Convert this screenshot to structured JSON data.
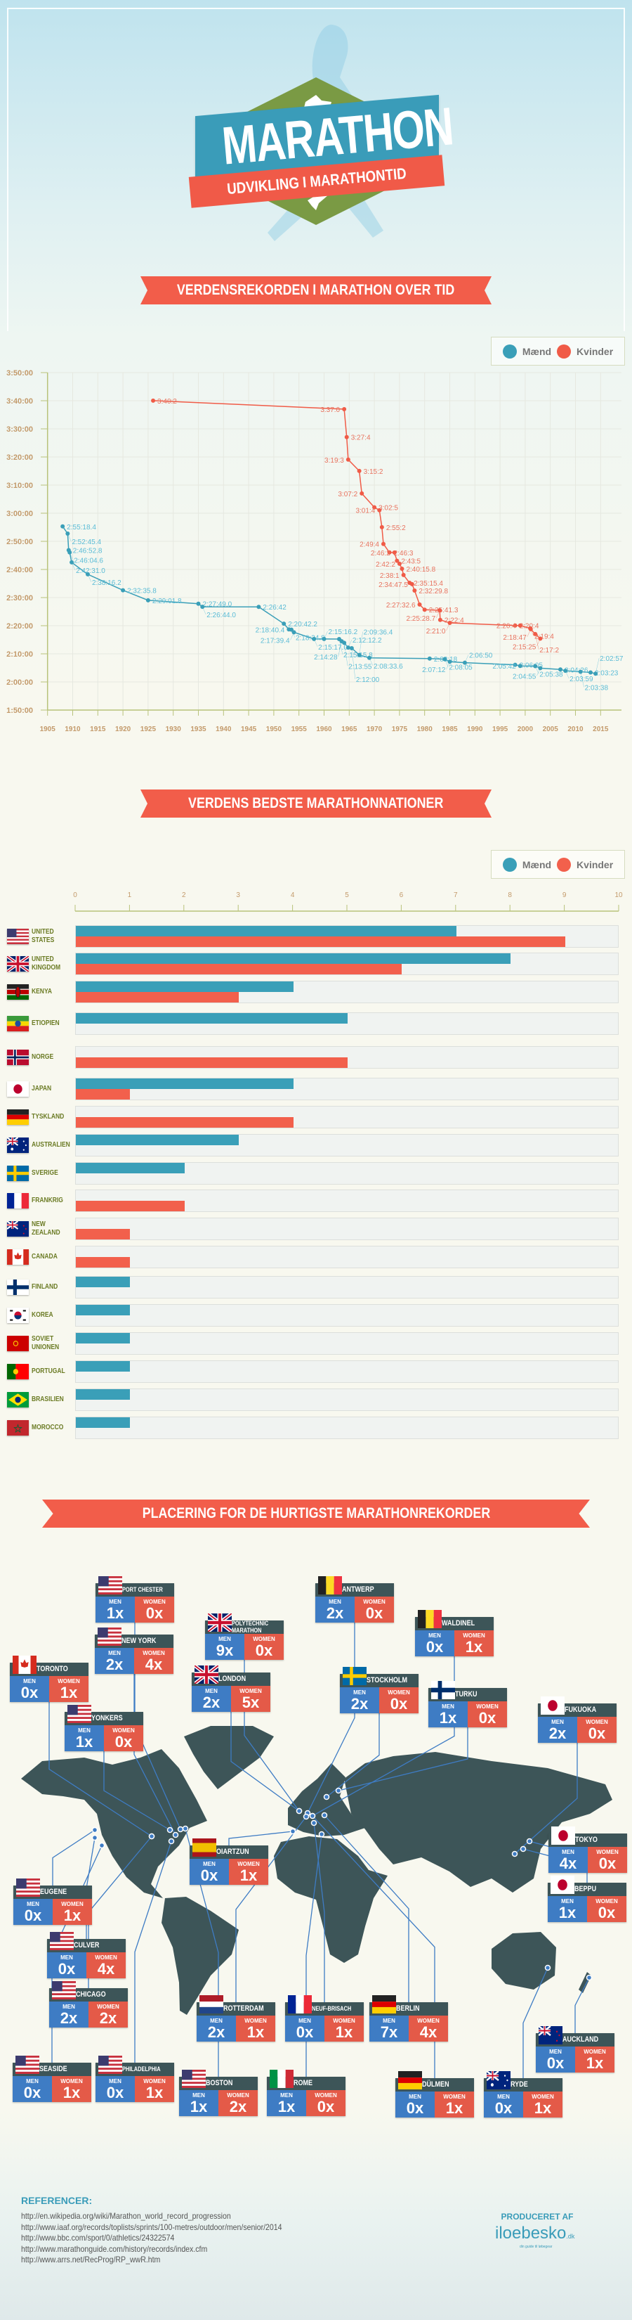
{
  "header": {
    "title": "MARATHON",
    "subtitle": "UDVIKLING I MARATHONTID"
  },
  "sections": {
    "records": "VERDENSREKORDEN I MARATHON OVER TID",
    "nations": "VERDENS BEDSTE MARATHONNATIONER",
    "locations": "PLACERING FOR DE HURTIGSTE MARATHONREKORDER"
  },
  "legend": {
    "men": "Mænd",
    "women": "Kvinder"
  },
  "colors": {
    "men": "#3a9fb8",
    "women": "#f05b47",
    "map": "#3d5558",
    "men_cell": "#3e7cc4",
    "women_cell": "#e45a48"
  },
  "chart_data": [
    {
      "type": "line",
      "title": "VERDENSREKORDEN I MARATHON OVER TID",
      "xlim": [
        1905,
        2015
      ],
      "xticks": [
        "1905",
        "1910",
        "1915",
        "1920",
        "1925",
        "1930",
        "1935",
        "1940",
        "1945",
        "1950",
        "1955",
        "1960",
        "1965",
        "1970",
        "1975",
        "1980",
        "1985",
        "1990",
        "1995",
        "2000",
        "2005",
        "2010",
        "2015"
      ],
      "ylim": [
        "1:50:00",
        "3:50:00"
      ],
      "yticks": [
        "3:50:00",
        "3:40:00",
        "3:30:00",
        "3:20:00",
        "3:10:00",
        "3:00:00",
        "2:50:00",
        "2:40:00",
        "2:30:00",
        "2:20:00",
        "2:10:00",
        "2:00:00",
        "1:50:00"
      ],
      "grid": true,
      "legend_position": "top-right",
      "series": [
        {
          "name": "Mænd",
          "color": "#3a9fb8",
          "points": [
            [
              1908,
              "2:55:18.4"
            ],
            [
              1909,
              "2:52:45.4"
            ],
            [
              1909.2,
              "2:46:52.8"
            ],
            [
              1909.4,
              "2:46:04.6"
            ],
            [
              1909.8,
              "2:42:31.0"
            ],
            [
              1913,
              "2:38:16.2"
            ],
            [
              1920,
              "2:32:35.8"
            ],
            [
              1925,
              "2:29:01.8"
            ],
            [
              1935,
              "2:27:49.0"
            ],
            [
              1935.8,
              "2:26:44.0"
            ],
            [
              1947,
              "2:26:42"
            ],
            [
              1952,
              "2:20:42.2"
            ],
            [
              1953,
              "2:18:40.4"
            ],
            [
              1953.5,
              "2:18:34.8"
            ],
            [
              1954,
              "2:17:39.4"
            ],
            [
              1958,
              "2:15:17.0"
            ],
            [
              1960,
              "2:15:16.2"
            ],
            [
              1963,
              "2:15:15.8"
            ],
            [
              1963.5,
              "2:14:28"
            ],
            [
              1964,
              "2:13:55"
            ],
            [
              1964.8,
              "2:12:12.2"
            ],
            [
              1965.5,
              "2:12:00"
            ],
            [
              1967,
              "2:09:36.4"
            ],
            [
              1969,
              "2:08:33.6"
            ],
            [
              1981,
              "2:08:18"
            ],
            [
              1984,
              "2:08:05"
            ],
            [
              1985,
              "2:07:12"
            ],
            [
              1988,
              "2:06:50"
            ],
            [
              1998,
              "2:06:05"
            ],
            [
              1999,
              "2:05:42"
            ],
            [
              2002,
              "2:05:38"
            ],
            [
              2003,
              "2:04:55"
            ],
            [
              2007,
              "2:04:26"
            ],
            [
              2008,
              "2:03:59"
            ],
            [
              2011,
              "2:03:38"
            ],
            [
              2013,
              "2:03:23"
            ],
            [
              2014,
              "2:02:57"
            ]
          ]
        },
        {
          "name": "Kvinder",
          "color": "#f05b47",
          "points": [
            [
              1926,
              "3:40:2"
            ],
            [
              1964,
              "3:37:0"
            ],
            [
              1964.5,
              "3:27:4"
            ],
            [
              1964.8,
              "3:19:3"
            ],
            [
              1967,
              "3:15:2"
            ],
            [
              1967.5,
              "3:07:2"
            ],
            [
              1970,
              "3:02:5"
            ],
            [
              1971,
              "3:01:4"
            ],
            [
              1971.5,
              "2:55:2"
            ],
            [
              1971.8,
              "2:49:4"
            ],
            [
              1973,
              "2:46:3"
            ],
            [
              1974,
              "2:46:2"
            ],
            [
              1974.5,
              "2:43:5"
            ],
            [
              1975,
              "2:42:2"
            ],
            [
              1975.5,
              "2:40:15.8"
            ],
            [
              1975.8,
              "2:38:1"
            ],
            [
              1977,
              "2:35:15.4"
            ],
            [
              1977.5,
              "2:34:47.5"
            ],
            [
              1978,
              "2:32:29.8"
            ],
            [
              1979,
              "2:27:32.6"
            ],
            [
              1980,
              "2:25:41.3"
            ],
            [
              1983,
              "2:25:28.7"
            ],
            [
              1983.1,
              "2:22:4"
            ],
            [
              1985,
              "2:21:0"
            ],
            [
              1998,
              "2:20:4"
            ],
            [
              1999,
              "2:20:4"
            ],
            [
              2001,
              "2:19:4"
            ],
            [
              2001.1,
              "2:18:47"
            ],
            [
              2002,
              "2:17:2"
            ],
            [
              2003,
              "2:15:25"
            ]
          ]
        }
      ]
    },
    {
      "type": "bar",
      "title": "VERDENS BEDSTE MARATHONNATIONER",
      "orientation": "horizontal",
      "xlim": [
        0,
        10
      ],
      "xticks": [
        "0",
        "1",
        "2",
        "3",
        "4",
        "5",
        "6",
        "7",
        "8",
        "9",
        "10"
      ],
      "legend_position": "top-right",
      "categories": [
        {
          "label": "UNITED STATES",
          "flag": "us"
        },
        {
          "label": "UNITED KINGDOM",
          "flag": "uk"
        },
        {
          "label": "KENYA",
          "flag": "ke"
        },
        {
          "label": "ETIOPIEN",
          "flag": "et"
        },
        {
          "label": "NORGE",
          "flag": "no"
        },
        {
          "label": "JAPAN",
          "flag": "jp"
        },
        {
          "label": "TYSKLAND",
          "flag": "de"
        },
        {
          "label": "AUSTRALIEN",
          "flag": "au"
        },
        {
          "label": "SVERIGE",
          "flag": "se"
        },
        {
          "label": "FRANKRIG",
          "flag": "fr"
        },
        {
          "label": "NEW ZEALAND",
          "flag": "nz"
        },
        {
          "label": "CANADA",
          "flag": "ca"
        },
        {
          "label": "FINLAND",
          "flag": "fi"
        },
        {
          "label": "KOREA",
          "flag": "kr"
        },
        {
          "label": "SOVIET UNIONEN",
          "flag": "su"
        },
        {
          "label": "PORTUGAL",
          "flag": "pt"
        },
        {
          "label": "BRASILIEN",
          "flag": "br"
        },
        {
          "label": "MOROCCO",
          "flag": "ma"
        }
      ],
      "series": [
        {
          "name": "Mænd",
          "color": "#3a9fb8",
          "values": [
            7,
            8,
            4,
            5,
            0,
            4,
            0,
            3,
            2,
            0,
            0,
            0,
            1,
            1,
            1,
            1,
            1,
            1
          ]
        },
        {
          "name": "Kvinder",
          "color": "#f2604c",
          "values": [
            9,
            6,
            3,
            0,
            5,
            1,
            4,
            0,
            0,
            2,
            1,
            1,
            0,
            0,
            0,
            0,
            0,
            0
          ]
        }
      ]
    }
  ],
  "map": {
    "men_label": "MEN",
    "women_label": "WOMEN",
    "cities": [
      {
        "name": "PORT CHESTER",
        "flag": "us",
        "men": "1x",
        "women": "0x"
      },
      {
        "name": "ANTWERP",
        "flag": "be",
        "men": "2x",
        "women": "0x"
      },
      {
        "name": "POLYTECHNIC MARATHON",
        "flag": "uk",
        "men": "9x",
        "women": "0x"
      },
      {
        "name": "WALDINEL",
        "flag": "be",
        "men": "0x",
        "women": "1x"
      },
      {
        "name": "NEW YORK",
        "flag": "us",
        "men": "2x",
        "women": "4x"
      },
      {
        "name": "TORONTO",
        "flag": "ca",
        "men": "0x",
        "women": "1x"
      },
      {
        "name": "LONDON",
        "flag": "uk",
        "men": "2x",
        "women": "5x"
      },
      {
        "name": "STOCKHOLM",
        "flag": "se",
        "men": "2x",
        "women": "0x"
      },
      {
        "name": "TURKU",
        "flag": "fi",
        "men": "1x",
        "women": "0x"
      },
      {
        "name": "FUKUOKA",
        "flag": "jp",
        "men": "2x",
        "women": "0x"
      },
      {
        "name": "YONKERS",
        "flag": "us",
        "men": "1x",
        "women": "0x"
      },
      {
        "name": "OIARTZUN",
        "flag": "es",
        "men": "0x",
        "women": "1x"
      },
      {
        "name": "TOKYO",
        "flag": "jp",
        "men": "4x",
        "women": "0x"
      },
      {
        "name": "EUGENE",
        "flag": "us",
        "men": "0x",
        "women": "1x"
      },
      {
        "name": "BEPPU",
        "flag": "jp",
        "men": "1x",
        "women": "0x"
      },
      {
        "name": "CULVER",
        "flag": "us",
        "men": "0x",
        "women": "4x"
      },
      {
        "name": "CHICAGO",
        "flag": "us",
        "men": "2x",
        "women": "2x"
      },
      {
        "name": "ROTTERDAM",
        "flag": "nl",
        "men": "2x",
        "women": "1x"
      },
      {
        "name": "NEUF-BRISACH",
        "flag": "fr",
        "men": "0x",
        "women": "1x"
      },
      {
        "name": "BERLIN",
        "flag": "de",
        "men": "7x",
        "women": "4x"
      },
      {
        "name": "AUCKLAND",
        "flag": "nz",
        "men": "0x",
        "women": "1x"
      },
      {
        "name": "SEASIDE",
        "flag": "us",
        "men": "0x",
        "women": "1x"
      },
      {
        "name": "PHILADELPHIA",
        "flag": "us",
        "men": "0x",
        "women": "1x"
      },
      {
        "name": "BOSTON",
        "flag": "us",
        "men": "1x",
        "women": "2x"
      },
      {
        "name": "ROME",
        "flag": "it",
        "men": "1x",
        "women": "0x"
      },
      {
        "name": "DÜLMEN",
        "flag": "de",
        "men": "0x",
        "women": "1x"
      },
      {
        "name": "RYDE",
        "flag": "au",
        "men": "0x",
        "women": "1x"
      }
    ]
  },
  "references": {
    "title": "REFERENCER:",
    "links": [
      "http://en.wikipedia.org/wiki/Marathon_world_record_progression",
      "http://www.iaaf.org/records/toplists/sprints/100-metres/outdoor/men/senior/2014",
      "http://www.bbc.com/sport/0/athletics/24322574",
      "http://www.marathonguide.com/history/records/index.cfm",
      "http://www.arrs.net/RecProg/RP_wwR.htm"
    ]
  },
  "footer": {
    "produced_by": "PRODUCERET AF",
    "logo": "iloebesko",
    "logo_tld": ".dk",
    "tagline": "din guide til løbegear"
  }
}
